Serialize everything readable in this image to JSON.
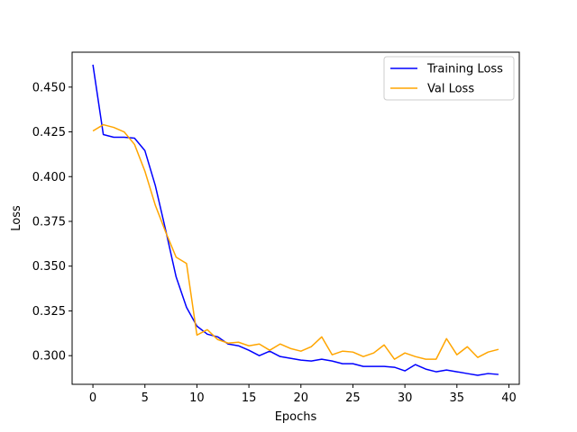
{
  "chart_data": {
    "type": "line",
    "title": "",
    "xlabel": "Epochs",
    "ylabel": "Loss",
    "xlim": [
      -2,
      41
    ],
    "ylim": [
      0.284,
      0.4695
    ],
    "xticks": [
      0,
      5,
      10,
      15,
      20,
      25,
      30,
      35,
      40
    ],
    "yticks": [
      0.3,
      0.325,
      0.35,
      0.375,
      0.4,
      0.425,
      0.45
    ],
    "xtick_labels": [
      "0",
      "5",
      "10",
      "15",
      "20",
      "25",
      "30",
      "35",
      "40"
    ],
    "ytick_labels": [
      "0.300",
      "0.325",
      "0.350",
      "0.375",
      "0.400",
      "0.425",
      "0.450"
    ],
    "grid": false,
    "legend_position": "top-right",
    "x": [
      0,
      1,
      2,
      3,
      4,
      5,
      6,
      7,
      8,
      9,
      10,
      11,
      12,
      13,
      14,
      15,
      16,
      17,
      18,
      19,
      20,
      21,
      22,
      23,
      24,
      25,
      26,
      27,
      28,
      29,
      30,
      31,
      32,
      33,
      34,
      35,
      36,
      37,
      38,
      39
    ],
    "series": [
      {
        "name": "Training Loss",
        "color": "#0000ff",
        "values": [
          0.4625,
          0.4235,
          0.422,
          0.422,
          0.4215,
          0.4145,
          0.395,
          0.37,
          0.344,
          0.327,
          0.3165,
          0.312,
          0.3105,
          0.3065,
          0.3055,
          0.303,
          0.3,
          0.3025,
          0.2995,
          0.2985,
          0.2975,
          0.297,
          0.298,
          0.297,
          0.2955,
          0.2955,
          0.294,
          0.294,
          0.294,
          0.2935,
          0.2915,
          0.295,
          0.2925,
          0.291,
          0.292,
          0.291,
          0.29,
          0.289,
          0.29,
          0.2895
        ]
      },
      {
        "name": "Val Loss",
        "color": "#ffa500",
        "values": [
          0.4255,
          0.429,
          0.4275,
          0.425,
          0.418,
          0.403,
          0.384,
          0.369,
          0.355,
          0.3515,
          0.3115,
          0.3145,
          0.309,
          0.307,
          0.3075,
          0.3055,
          0.3065,
          0.303,
          0.3065,
          0.304,
          0.3025,
          0.305,
          0.3105,
          0.3005,
          0.3025,
          0.302,
          0.2995,
          0.3015,
          0.306,
          0.298,
          0.3015,
          0.2995,
          0.298,
          0.298,
          0.3095,
          0.3005,
          0.305,
          0.299,
          0.302,
          0.3035
        ]
      }
    ]
  }
}
